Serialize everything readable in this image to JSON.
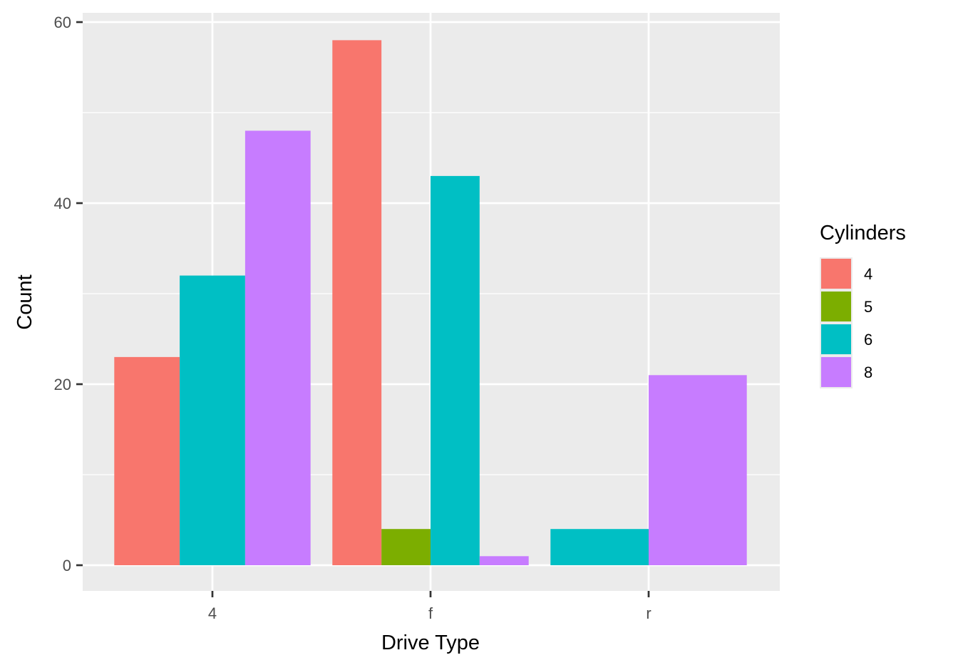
{
  "chart_data": {
    "type": "bar",
    "title": "",
    "xlabel": "Drive Type",
    "ylabel": "Count",
    "categories": [
      "4",
      "f",
      "r"
    ],
    "ylim": [
      0,
      62.5
    ],
    "yticks": [
      0,
      20,
      40,
      60
    ],
    "grid": true,
    "legend_position": "right",
    "legend_title": "Cylinders",
    "series": [
      {
        "name": "4",
        "color": "#F8766D",
        "values": [
          23,
          58,
          null
        ]
      },
      {
        "name": "5",
        "color": "#7CAE00",
        "values": [
          null,
          4,
          null
        ]
      },
      {
        "name": "6",
        "color": "#00BFC4",
        "values": [
          32,
          43,
          4
        ]
      },
      {
        "name": "8",
        "color": "#C77CFF",
        "values": [
          48,
          1,
          21
        ]
      }
    ]
  },
  "axes": {
    "x_title": "Drive Type",
    "y_title": "Count",
    "x_ticks": [
      "4",
      "f",
      "r"
    ],
    "y_ticks": [
      "0",
      "20",
      "40",
      "60"
    ]
  },
  "legend": {
    "title": "Cylinders",
    "items": [
      {
        "label": "4",
        "color": "#F8766D"
      },
      {
        "label": "5",
        "color": "#7CAE00"
      },
      {
        "label": "6",
        "color": "#00BFC4"
      },
      {
        "label": "8",
        "color": "#C77CFF"
      }
    ]
  },
  "colors": {
    "panel_background": "#EBEBEB",
    "grid": "#FFFFFF",
    "tick": "#333333"
  }
}
